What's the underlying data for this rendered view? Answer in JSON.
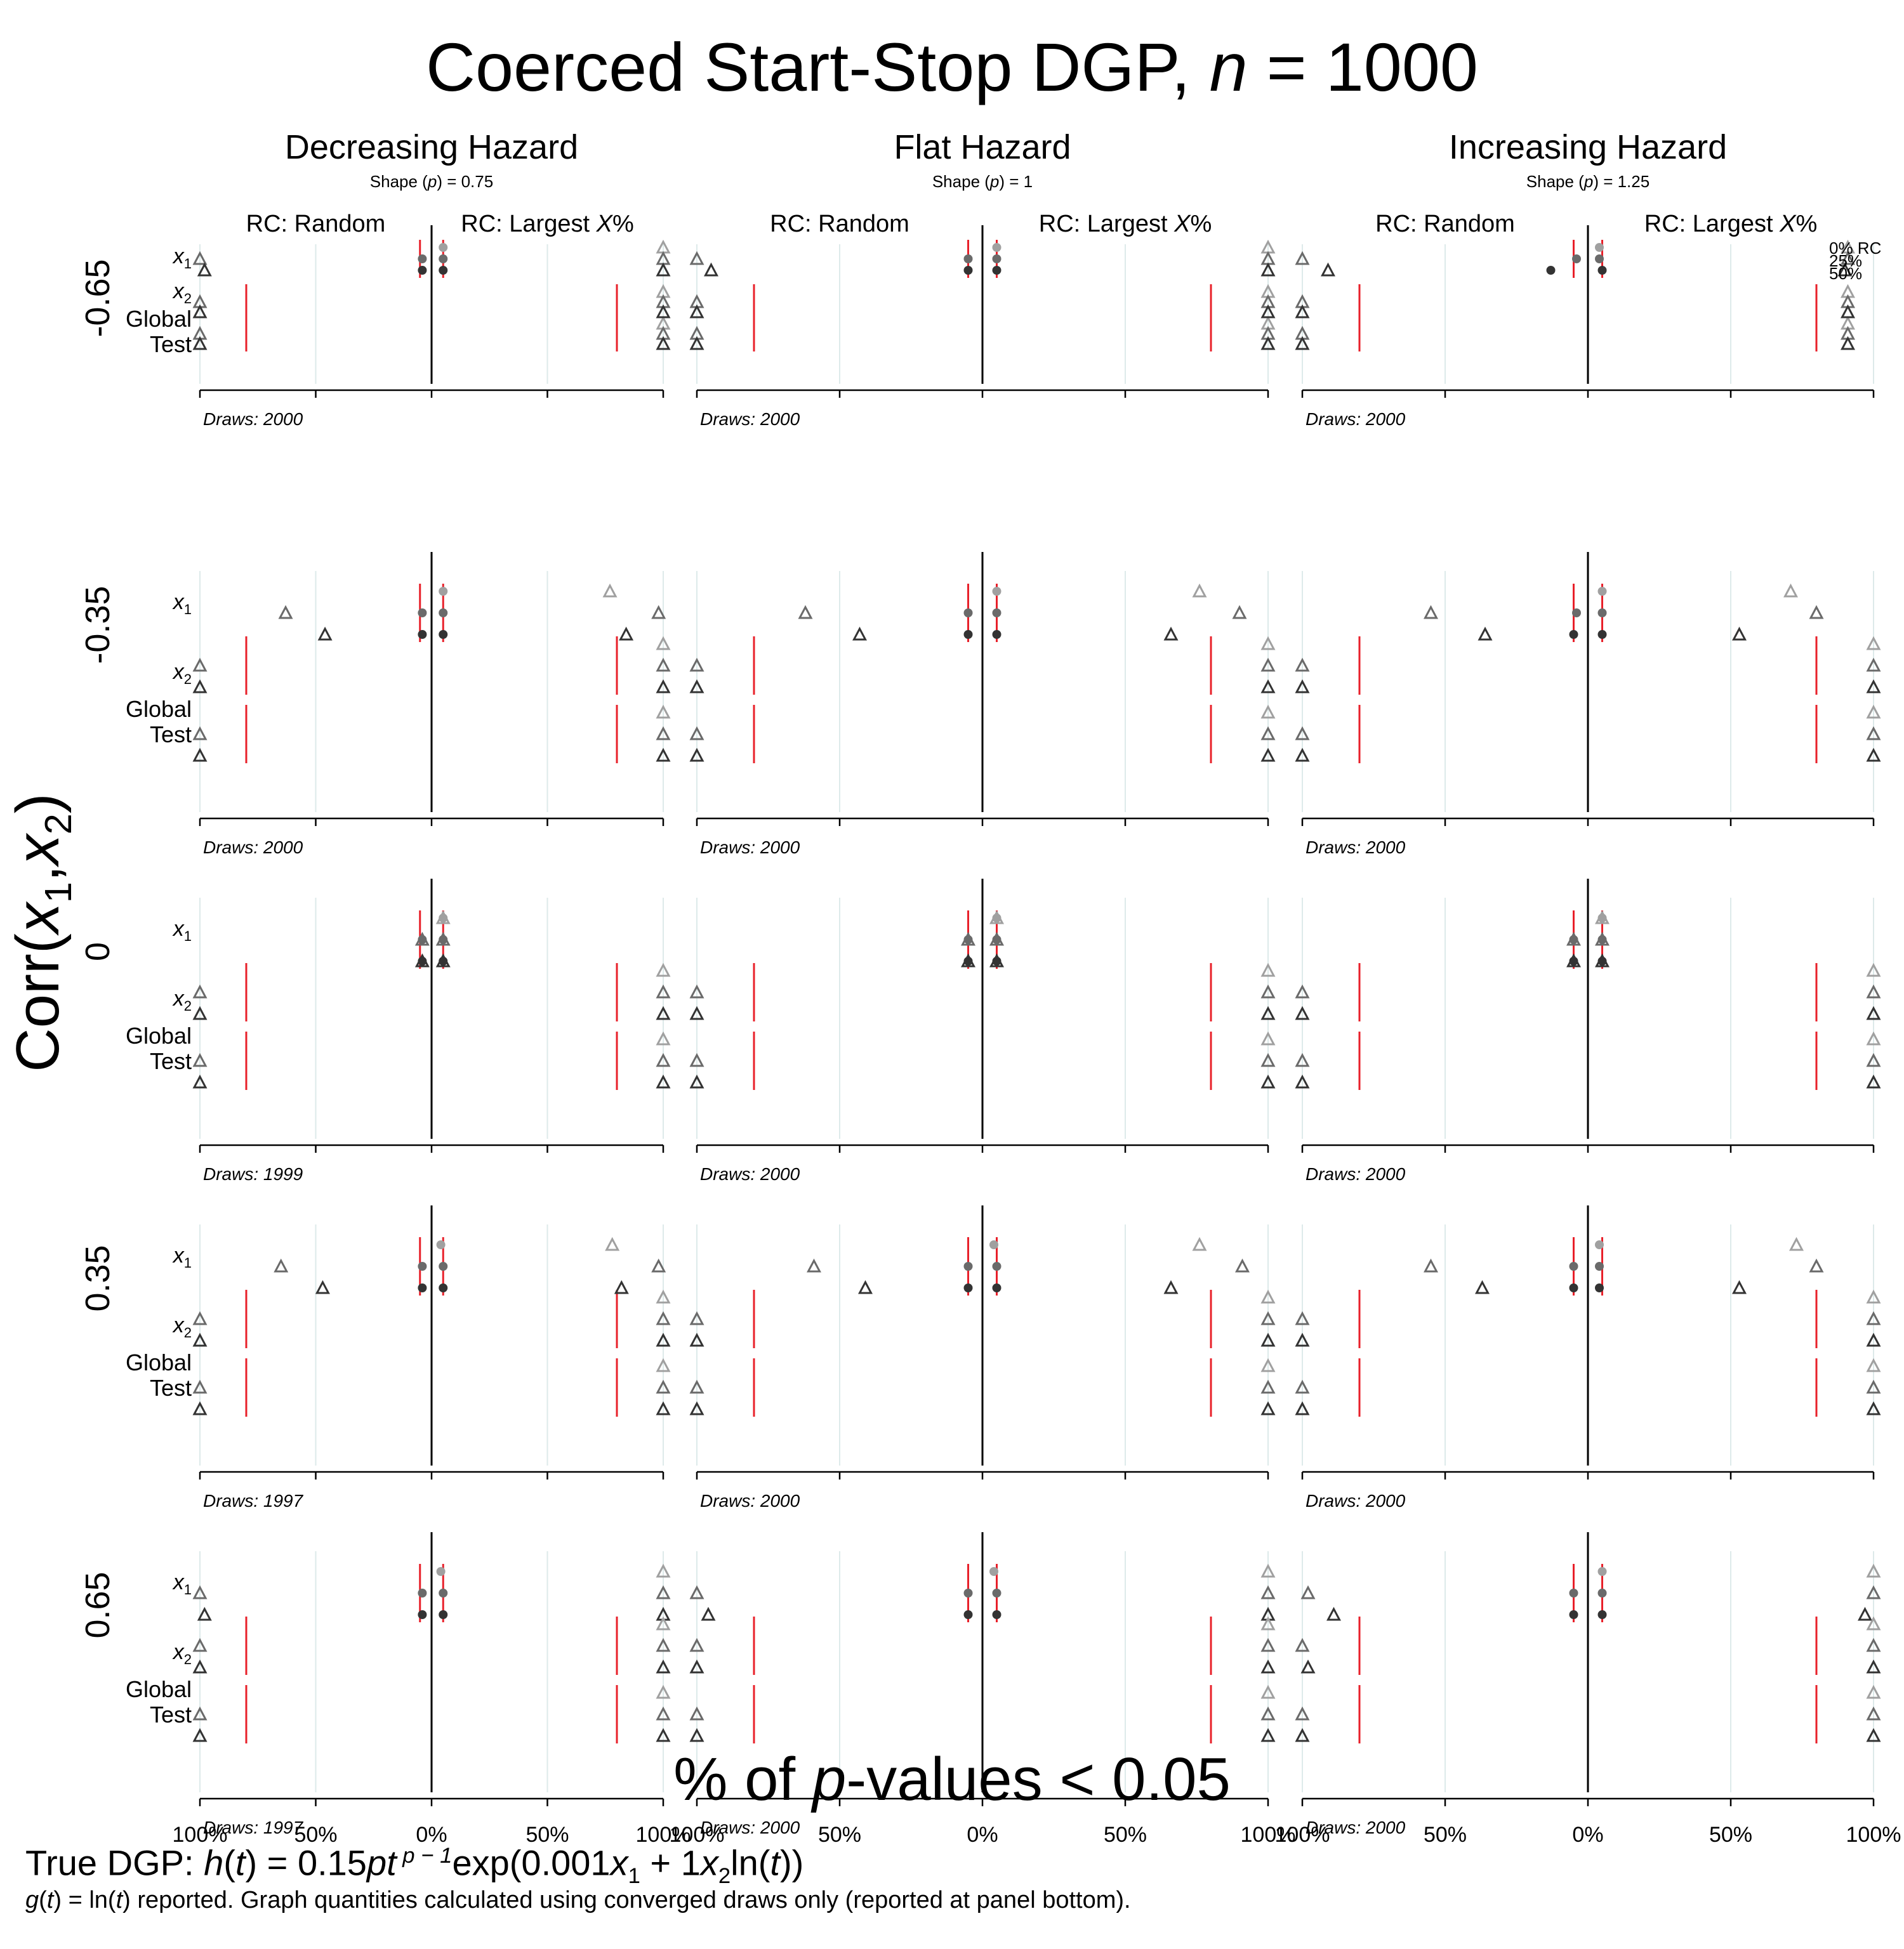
{
  "title": {
    "prefix": "Coerced Start-Stop DGP, ",
    "n_symbol": "n",
    "suffix": " = 1000"
  },
  "x_title": {
    "prefix": "% of ",
    "p": "p",
    "suffix": "-values < 0.05"
  },
  "y_title": {
    "prefix": "Corr(",
    "x1": "x",
    "x1_sub": "1",
    "comma": ",",
    "x2": "x",
    "x2_sub": "2",
    "suffix": ")"
  },
  "footer": {
    "formula_prefix": "True DGP: ",
    "h": "h",
    "t": "t",
    "eq": " = 0.15",
    "pt": "pt",
    "exponent": " p − 1",
    "exp_open": "exp(0.001",
    "x1": "x",
    "x1_sub": "1",
    "plus": " + 1",
    "x2": "x",
    "x2_sub": "2",
    "ln_open": "ln(",
    "ln_t": "t",
    "close": "))",
    "note_g": "g",
    "note_t": "t",
    "note_mid": ") = ln(",
    "note_t2": "t",
    "note_rest": ") reported.  Graph quantities calculated using converged draws only (reported at panel bottom)."
  },
  "chart_data": {
    "type": "scatter",
    "description_axes": "Each panel: left half = RC: Random, right half = RC: Largest X%; horizontal axis shows % of p-values < 0.05 mirrored from center 0%",
    "columns": [
      {
        "title": "Decreasing Hazard",
        "shape_label": "Shape (p) = 0.75",
        "shape_prefix": "Shape (",
        "shape_p": "p",
        "shape_suffix": ") = 0.75"
      },
      {
        "title": "Flat Hazard",
        "shape_label": "Shape (p) = 1",
        "shape_prefix": "Shape (",
        "shape_p": "p",
        "shape_suffix": ") = 1"
      },
      {
        "title": "Increasing Hazard",
        "shape_label": "Shape (p) = 1.25",
        "shape_prefix": "Shape (",
        "shape_p": "p",
        "shape_suffix": ") = 1.25"
      }
    ],
    "half_labels": {
      "left": "RC: Random",
      "right_prefix": "RC: Largest ",
      "right_x": "X",
      "right_suffix": "%"
    },
    "rows": [
      "-0.65",
      "-0.35",
      "0",
      "0.35",
      "0.65"
    ],
    "row_labels": {
      "x1": "x",
      "x1_sub": "1",
      "x2": "x",
      "x2_sub": "2",
      "global": "Global",
      "test": "Test"
    },
    "x_ticks": [
      "100%",
      "50%",
      "0%",
      "50%",
      "100%"
    ],
    "legend": [
      "0% RC",
      "25%",
      "50%"
    ],
    "rc_levels": [
      "0% RC",
      "25%",
      "50%"
    ],
    "colors": {
      "rc0": "#a0a0a0",
      "rc25": "#6a6a6a",
      "rc50": "#333333",
      "redline": "#e8202a",
      "grid": "#ddeaea"
    },
    "draws": [
      [
        "Draws: 2000",
        "Draws: 2000",
        "Draws: 2000"
      ],
      [
        "Draws: 2000",
        "Draws: 2000",
        "Draws: 2000"
      ],
      [
        "Draws: 1999",
        "Draws: 2000",
        "Draws: 2000"
      ],
      [
        "Draws: 1997",
        "Draws: 2000",
        "Draws: 2000"
      ],
      [
        "Draws: 1997",
        "Draws: 2000",
        "Draws: 2000"
      ]
    ],
    "red_lines": {
      "x1": [
        -5,
        5
      ],
      "x2_global_test": [
        -80,
        80
      ]
    },
    "panels": [
      [
        {
          "x1": {
            "circles": [
              5,
              5,
              5
            ],
            "circles_left": [
              null,
              -4,
              -4
            ],
            "tri_left": [
              null,
              -100,
              -98
            ],
            "tri_right": [
              100,
              100,
              100
            ]
          },
          "x2": {
            "tri_left": [
              null,
              -100,
              -100
            ],
            "tri_right": [
              100,
              100,
              100
            ]
          },
          "global": {
            "tri_left": [
              null,
              -100,
              -100
            ],
            "tri_right": [
              100,
              100,
              100
            ]
          }
        },
        {
          "x1": {
            "circles": [
              5,
              5,
              5
            ],
            "circles_left": [
              null,
              -4,
              -4
            ],
            "tri_left": [
              null,
              -63,
              -46
            ],
            "tri_right": [
              77,
              98,
              84
            ]
          },
          "x2": {
            "tri_left": [
              null,
              -100,
              -100
            ],
            "tri_right": [
              100,
              100,
              100
            ]
          },
          "global": {
            "tri_left": [
              null,
              -100,
              -100
            ],
            "tri_right": [
              100,
              100,
              100
            ]
          }
        },
        {
          "x1": {
            "circles": [
              5,
              5,
              5
            ],
            "circles_left": [
              null,
              -4,
              -4
            ],
            "tri_left": [
              null,
              -4,
              -4
            ],
            "tri_right": [
              5,
              5,
              5
            ]
          },
          "x2": {
            "tri_left": [
              null,
              -100,
              -100
            ],
            "tri_right": [
              100,
              100,
              100
            ]
          },
          "global": {
            "tri_left": [
              null,
              -100,
              -100
            ],
            "tri_right": [
              100,
              100,
              100
            ]
          }
        },
        {
          "x1": {
            "circles": [
              4,
              5,
              5
            ],
            "circles_left": [
              null,
              -4,
              -4
            ],
            "tri_left": [
              null,
              -65,
              -47
            ],
            "tri_right": [
              78,
              98,
              82
            ]
          },
          "x2": {
            "tri_left": [
              null,
              -100,
              -100
            ],
            "tri_right": [
              100,
              100,
              100
            ]
          },
          "global": {
            "tri_left": [
              null,
              -100,
              -100
            ],
            "tri_right": [
              100,
              100,
              100
            ]
          }
        },
        {
          "x1": {
            "circles": [
              4,
              5,
              5
            ],
            "circles_left": [
              null,
              -4,
              -4
            ],
            "tri_left": [
              null,
              -100,
              -98
            ],
            "tri_right": [
              100,
              100,
              100
            ]
          },
          "x2": {
            "tri_left": [
              null,
              -100,
              -100
            ],
            "tri_right": [
              100,
              100,
              100
            ]
          },
          "global": {
            "tri_left": [
              null,
              -100,
              -100
            ],
            "tri_right": [
              100,
              100,
              100
            ]
          }
        }
      ],
      [
        {
          "x1": {
            "circles": [
              5,
              5,
              5
            ],
            "circles_left": [
              null,
              -5,
              -5
            ],
            "tri_left": [
              null,
              -100,
              -95
            ],
            "tri_right": [
              100,
              100,
              100
            ]
          },
          "x2": {
            "tri_left": [
              null,
              -100,
              -100
            ],
            "tri_right": [
              100,
              100,
              100
            ]
          },
          "global": {
            "tri_left": [
              null,
              -100,
              -100
            ],
            "tri_right": [
              100,
              100,
              100
            ]
          }
        },
        {
          "x1": {
            "circles": [
              5,
              5,
              5
            ],
            "circles_left": [
              null,
              -5,
              -5
            ],
            "tri_left": [
              null,
              -62,
              -43
            ],
            "tri_right": [
              76,
              90,
              66
            ]
          },
          "x2": {
            "tri_left": [
              null,
              -100,
              -100
            ],
            "tri_right": [
              100,
              100,
              100
            ]
          },
          "global": {
            "tri_left": [
              null,
              -100,
              -100
            ],
            "tri_right": [
              100,
              100,
              100
            ]
          }
        },
        {
          "x1": {
            "circles": [
              5,
              5,
              5
            ],
            "circles_left": [
              null,
              -5,
              -5
            ],
            "tri_left": [
              null,
              -5,
              -5
            ],
            "tri_right": [
              5,
              5,
              5
            ]
          },
          "x2": {
            "tri_left": [
              null,
              -100,
              -100
            ],
            "tri_right": [
              100,
              100,
              100
            ]
          },
          "global": {
            "tri_left": [
              null,
              -100,
              -100
            ],
            "tri_right": [
              100,
              100,
              100
            ]
          }
        },
        {
          "x1": {
            "circles": [
              4,
              5,
              5
            ],
            "circles_left": [
              null,
              -5,
              -5
            ],
            "tri_left": [
              null,
              -59,
              -41
            ],
            "tri_right": [
              76,
              91,
              66
            ]
          },
          "x2": {
            "tri_left": [
              null,
              -100,
              -100
            ],
            "tri_right": [
              100,
              100,
              100
            ]
          },
          "global": {
            "tri_left": [
              null,
              -100,
              -100
            ],
            "tri_right": [
              100,
              100,
              100
            ]
          }
        },
        {
          "x1": {
            "circles": [
              4,
              5,
              5
            ],
            "circles_left": [
              null,
              -5,
              -5
            ],
            "tri_left": [
              null,
              -100,
              -96
            ],
            "tri_right": [
              100,
              100,
              100
            ]
          },
          "x2": {
            "tri_left": [
              null,
              -100,
              -100
            ],
            "tri_right": [
              100,
              100,
              100
            ]
          },
          "global": {
            "tri_left": [
              null,
              -100,
              -100
            ],
            "tri_right": [
              100,
              100,
              100
            ]
          }
        }
      ],
      [
        {
          "x1": {
            "circles": [
              4,
              4,
              5
            ],
            "circles_left": [
              null,
              -4,
              -13
            ],
            "tri_left": [
              null,
              -100,
              -91
            ],
            "tri_right": [
              91,
              91,
              90
            ]
          },
          "x2": {
            "tri_left": [
              null,
              -100,
              -100
            ],
            "tri_right": [
              91,
              91,
              91
            ]
          },
          "global": {
            "tri_left": [
              null,
              -100,
              -100
            ],
            "tri_right": [
              91,
              91,
              91
            ]
          }
        },
        {
          "x1": {
            "circles": [
              5,
              5,
              5
            ],
            "circles_left": [
              null,
              -4,
              -5
            ],
            "tri_left": [
              null,
              -55,
              -36
            ],
            "tri_right": [
              71,
              80,
              53
            ]
          },
          "x2": {
            "tri_left": [
              null,
              -100,
              -100
            ],
            "tri_right": [
              100,
              100,
              100
            ]
          },
          "global": {
            "tri_left": [
              null,
              -100,
              -100
            ],
            "tri_right": [
              100,
              100,
              100
            ]
          }
        },
        {
          "x1": {
            "circles": [
              5,
              5,
              5
            ],
            "circles_left": [
              null,
              -5,
              -5
            ],
            "tri_left": [
              null,
              -5,
              -5
            ],
            "tri_right": [
              5,
              5,
              5
            ]
          },
          "x2": {
            "tri_left": [
              null,
              -100,
              -100
            ],
            "tri_right": [
              100,
              100,
              100
            ]
          },
          "global": {
            "tri_left": [
              null,
              -100,
              -100
            ],
            "tri_right": [
              100,
              100,
              100
            ]
          }
        },
        {
          "x1": {
            "circles": [
              4,
              4,
              4
            ],
            "circles_left": [
              null,
              -5,
              -5
            ],
            "tri_left": [
              null,
              -55,
              -37
            ],
            "tri_right": [
              73,
              80,
              53
            ]
          },
          "x2": {
            "tri_left": [
              null,
              -100,
              -100
            ],
            "tri_right": [
              100,
              100,
              100
            ]
          },
          "global": {
            "tri_left": [
              null,
              -100,
              -100
            ],
            "tri_right": [
              100,
              100,
              100
            ]
          }
        },
        {
          "x1": {
            "circles": [
              5,
              5,
              5
            ],
            "circles_left": [
              null,
              -5,
              -5
            ],
            "tri_left": [
              null,
              -98,
              -89
            ],
            "tri_right": [
              100,
              100,
              97
            ]
          },
          "x2": {
            "tri_left": [
              null,
              -100,
              -98
            ],
            "tri_right": [
              100,
              100,
              100
            ]
          },
          "global": {
            "tri_left": [
              null,
              -100,
              -100
            ],
            "tri_right": [
              100,
              100,
              100
            ]
          }
        }
      ]
    ]
  }
}
